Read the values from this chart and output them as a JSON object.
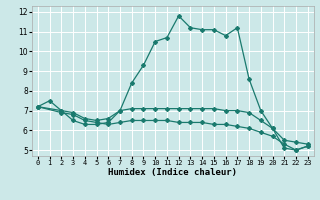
{
  "title": "",
  "xlabel": "Humidex (Indice chaleur)",
  "background_color": "#cce8e8",
  "grid_color": "#ffffff",
  "line_color": "#1a7a6e",
  "xlim": [
    -0.5,
    23.5
  ],
  "ylim": [
    4.7,
    12.3
  ],
  "xticks": [
    0,
    1,
    2,
    3,
    4,
    5,
    6,
    7,
    8,
    9,
    10,
    11,
    12,
    13,
    14,
    15,
    16,
    17,
    18,
    19,
    20,
    21,
    22,
    23
  ],
  "yticks": [
    5,
    6,
    7,
    8,
    9,
    10,
    11,
    12
  ],
  "line1_x": [
    0,
    1,
    2,
    3,
    4,
    5,
    6,
    7,
    8,
    9,
    10,
    11,
    12,
    13,
    14,
    15,
    16,
    17,
    18,
    19,
    20,
    21,
    22,
    23
  ],
  "line1_y": [
    7.2,
    7.5,
    7.0,
    6.5,
    6.3,
    6.3,
    6.4,
    7.0,
    8.4,
    9.3,
    10.5,
    10.7,
    11.8,
    11.2,
    11.1,
    11.1,
    10.8,
    11.2,
    8.6,
    7.0,
    6.1,
    5.1,
    5.0,
    5.2
  ],
  "line2_x": [
    0,
    2,
    3,
    4,
    5,
    6,
    7,
    8,
    9,
    10,
    11,
    12,
    13,
    14,
    15,
    16,
    17,
    18,
    19,
    20,
    21,
    22,
    23
  ],
  "line2_y": [
    7.2,
    7.0,
    6.9,
    6.6,
    6.5,
    6.6,
    7.0,
    7.1,
    7.1,
    7.1,
    7.1,
    7.1,
    7.1,
    7.1,
    7.1,
    7.0,
    7.0,
    6.9,
    6.5,
    6.1,
    5.5,
    5.4,
    5.3
  ],
  "line3_x": [
    0,
    2,
    3,
    4,
    5,
    6,
    7,
    8,
    9,
    10,
    11,
    12,
    13,
    14,
    15,
    16,
    17,
    18,
    19,
    20,
    21,
    22,
    23
  ],
  "line3_y": [
    7.2,
    6.9,
    6.8,
    6.5,
    6.4,
    6.3,
    6.4,
    6.5,
    6.5,
    6.5,
    6.5,
    6.4,
    6.4,
    6.4,
    6.3,
    6.3,
    6.2,
    6.1,
    5.9,
    5.7,
    5.3,
    5.0,
    5.2
  ]
}
